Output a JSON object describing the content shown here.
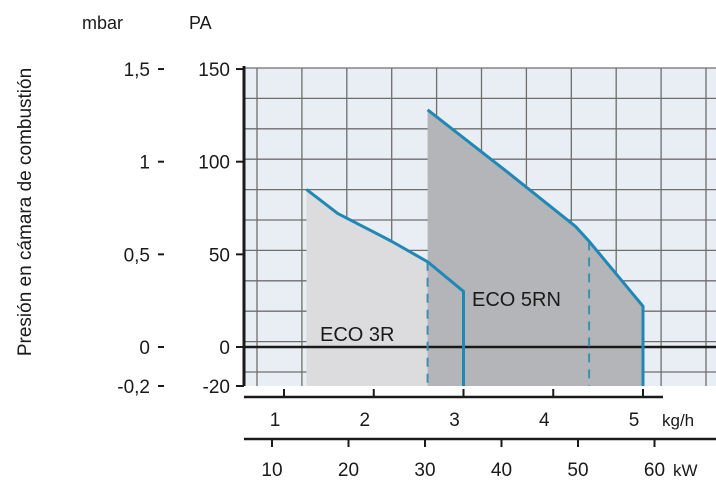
{
  "chart_data": {
    "type": "area",
    "title": "",
    "ylabel": "Presión en cámara de combustión",
    "y_unit_left": "mbar",
    "y_unit_right": "PA",
    "y_ticks_mbar": [
      "1,5",
      "1",
      "0,5",
      "0",
      "-0,2"
    ],
    "y_ticks_pa": [
      150,
      100,
      50,
      0,
      -20
    ],
    "ylim_pa": [
      -20,
      150
    ],
    "x_unit_top": "kg/h",
    "x_ticks_kgh": [
      1,
      2,
      3,
      4,
      5
    ],
    "xlim_kgh": [
      0.6,
      6.5
    ],
    "x_unit_bottom": "kW",
    "x_ticks_kw": [
      10,
      20,
      30,
      40,
      50,
      60
    ],
    "grid": true,
    "series": [
      {
        "name": "ECO 3R",
        "x_kgh": [
          1.25,
          1.6,
          2.2,
          2.6,
          3.0
        ],
        "y_pa": [
          85,
          72,
          57,
          46,
          30
        ],
        "range_kgh": [
          1.25,
          3.0
        ],
        "divider_kgh": 2.6
      },
      {
        "name": "ECO 5RN",
        "x_kgh": [
          2.6,
          3.5,
          4.25,
          4.4,
          5.0
        ],
        "y_pa": [
          128,
          94,
          65,
          57,
          22
        ],
        "range_kgh": [
          2.6,
          5.0
        ],
        "divider_kgh": 4.4
      }
    ],
    "colors": {
      "plot_bg": "#e8eef3",
      "grid": "#6e6e6e",
      "area_3r": "#dcdcde",
      "area_5rn": "#b4b5b9",
      "curve": "#1f88b5",
      "axis": "#1a1a1a"
    }
  }
}
